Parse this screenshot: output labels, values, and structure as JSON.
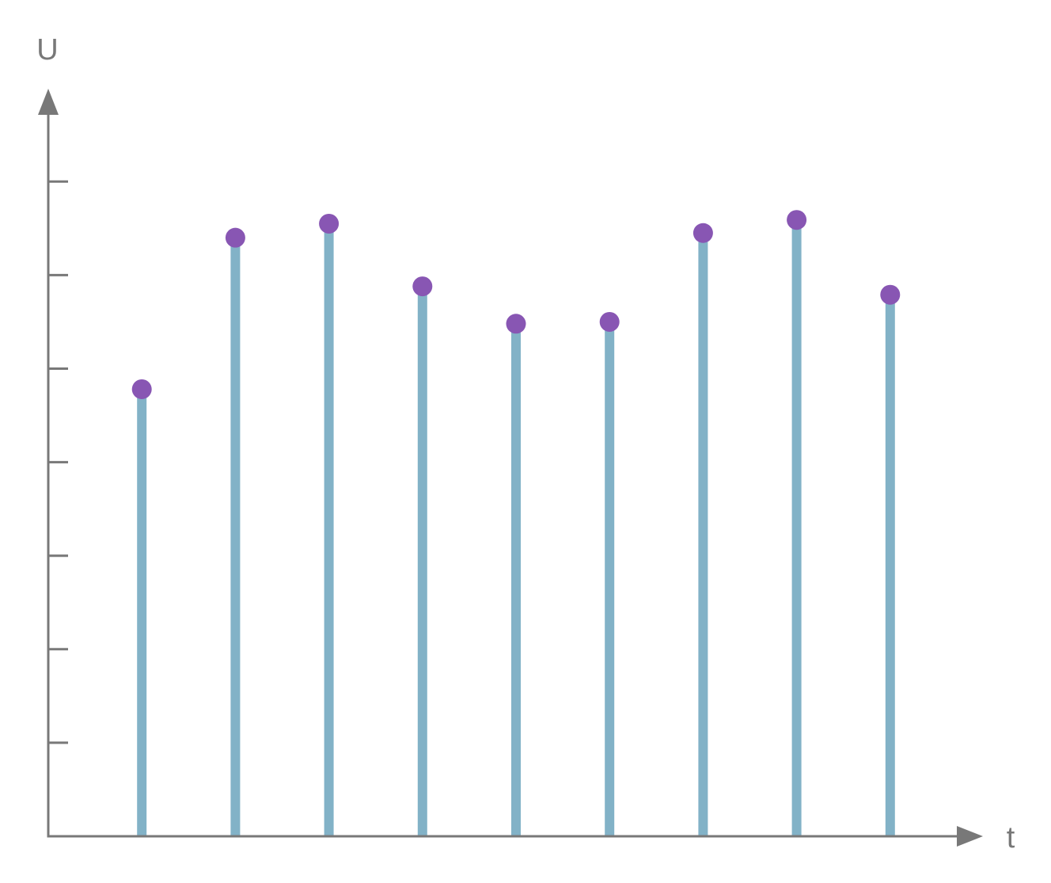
{
  "chart_data": {
    "type": "stem",
    "xlabel": "t",
    "ylabel": "U",
    "x": [
      1,
      2,
      3,
      4,
      5,
      6,
      7,
      8,
      9
    ],
    "values": [
      4.78,
      6.4,
      6.55,
      5.88,
      5.48,
      5.5,
      6.45,
      6.59,
      5.79
    ],
    "xlim": [
      0,
      10
    ],
    "ylim": [
      0,
      8
    ],
    "ytick_count": 7,
    "grid": false,
    "colors": {
      "stem": "#82b2c7",
      "marker": "#8856b3",
      "axis": "#787878"
    }
  }
}
